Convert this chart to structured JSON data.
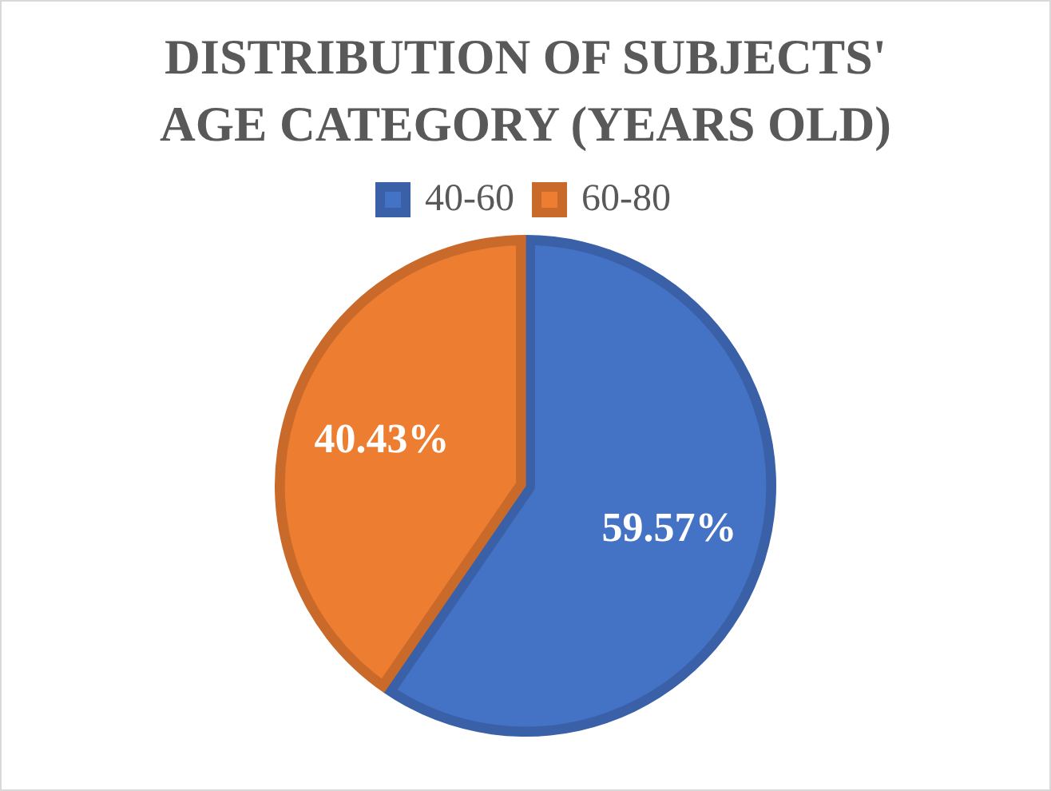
{
  "chart_data": {
    "type": "pie",
    "title": "DISTRIBUTION OF SUBJECTS' AGE CATEGORY (YEARS OLD)",
    "categories": [
      "40-60",
      "60-80"
    ],
    "values": [
      59.57,
      40.43
    ],
    "colors": [
      "#4472c4",
      "#ed7d31"
    ],
    "value_labels": [
      "59.57%",
      "40.43%"
    ],
    "legend": "top"
  }
}
